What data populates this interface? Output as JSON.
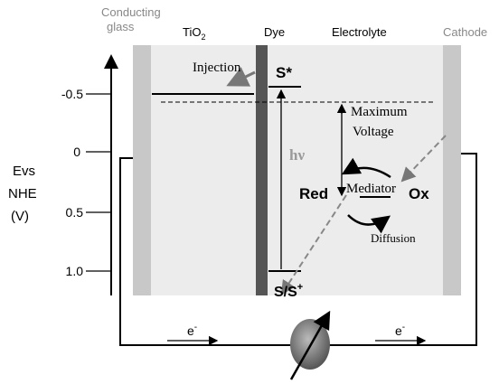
{
  "header": {
    "conducting_glass": [
      "Conducting",
      "glass"
    ],
    "tio2": {
      "base": "TiO",
      "sub": "2"
    },
    "dye": "Dye",
    "electrolyte": "Electrolyte",
    "cathode": "Cathode"
  },
  "axis": {
    "label": [
      "Evs",
      "NHE",
      "(V)"
    ],
    "ticks": [
      "-0.5",
      "0",
      "0.5",
      "1.0"
    ]
  },
  "labels": {
    "injection": "Injection",
    "s_star": "S*",
    "maximum": "Maximum",
    "voltage": "Voltage",
    "hv": "hν",
    "red": "Red",
    "mediator": "Mediator",
    "ox": "Ox",
    "diffusion": "Diffusion",
    "s_ground": {
      "base": "S/S",
      "sup": "+"
    }
  },
  "circuit": {
    "electron_left": {
      "base": "e",
      "sup": "-"
    },
    "electron_right": {
      "base": "e",
      "sup": "-"
    }
  }
}
